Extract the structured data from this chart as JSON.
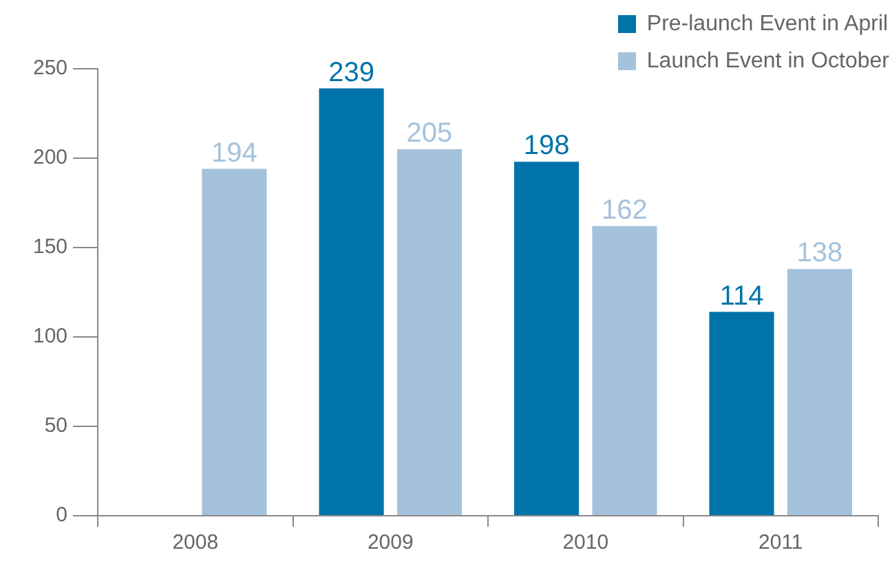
{
  "chart_data": {
    "type": "bar",
    "categories": [
      "2008",
      "2009",
      "2010",
      "2011"
    ],
    "series": [
      {
        "name": "Pre-launch Event in April",
        "color": "#0073a8",
        "values": [
          null,
          239,
          198,
          114
        ]
      },
      {
        "name": "Launch Event in October",
        "color": "#a5c2dc",
        "values": [
          194,
          205,
          162,
          138
        ]
      }
    ],
    "ylim": [
      0,
      250
    ],
    "yticks": [
      0,
      50,
      100,
      150,
      200,
      250
    ],
    "grid": false,
    "legend": "top right",
    "data_labels": true
  }
}
